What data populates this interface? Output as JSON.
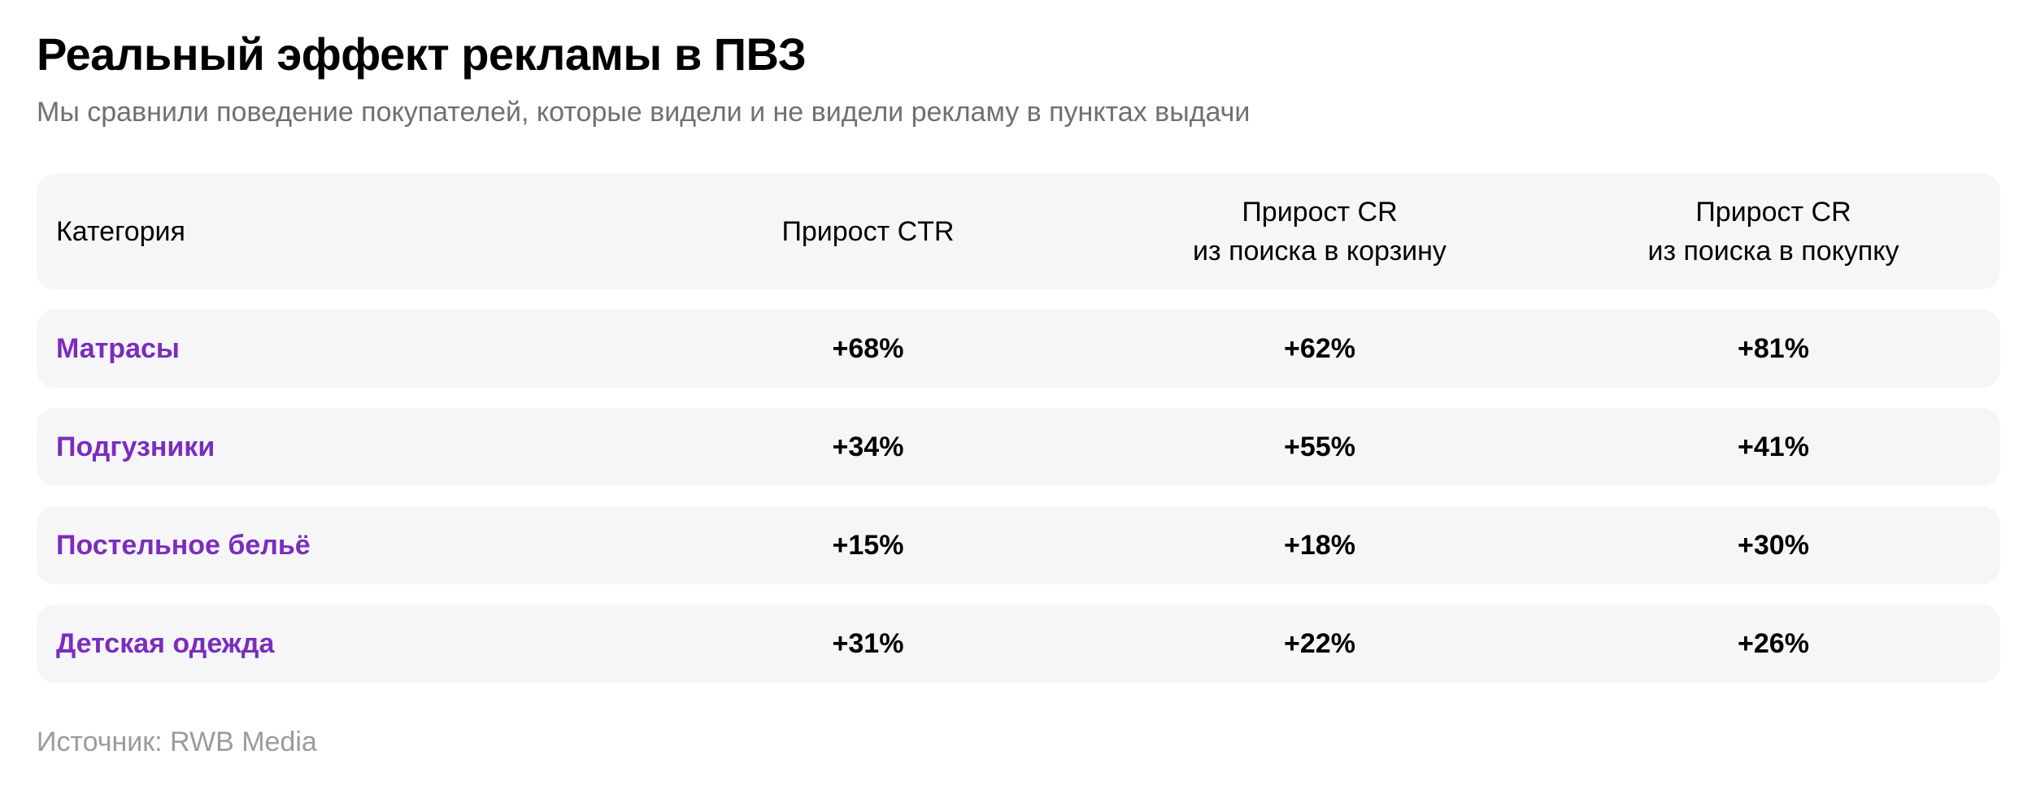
{
  "title": "Реальный эффект рекламы в ПВЗ",
  "subtitle": "Мы сравнили поведение покупателей, которые видели и не видели рекламу в пунктах выдачи",
  "table": {
    "headers": {
      "category": "Категория",
      "ctr": "Прирост CTR",
      "cr_cart_line1": "Прирост CR",
      "cr_cart_line2": "из поиска в корзину",
      "cr_purchase_line1": "Прирост CR",
      "cr_purchase_line2": "из поиска в покупку"
    },
    "rows": [
      {
        "category": "Матрасы",
        "ctr": "+68%",
        "cr_cart": "+62%",
        "cr_purchase": "+81%"
      },
      {
        "category": "Подгузники",
        "ctr": "+34%",
        "cr_cart": "+55%",
        "cr_purchase": "+41%"
      },
      {
        "category": "Постельное бельё",
        "ctr": "+15%",
        "cr_cart": "+18%",
        "cr_purchase": "+30%"
      },
      {
        "category": "Детская одежда",
        "ctr": "+31%",
        "cr_cart": "+22%",
        "cr_purchase": "+26%"
      }
    ]
  },
  "source": "Источник: RWB Media",
  "colors": {
    "category_text": "#7b2cbf",
    "row_background": "#f6f6f8",
    "subtitle_text": "#6f6f74",
    "source_text": "#9a9aa0"
  }
}
